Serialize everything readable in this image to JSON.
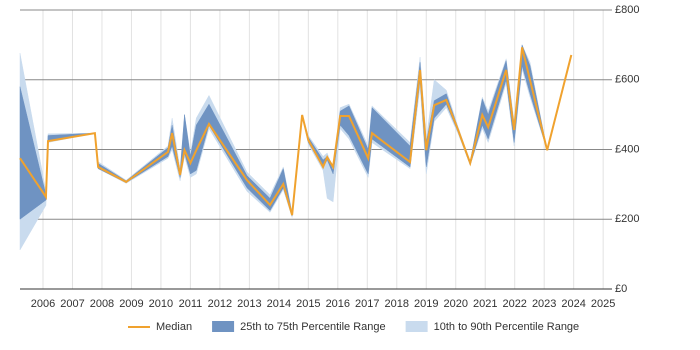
{
  "chart_data": {
    "type": "range-line",
    "x": [
      2005.22,
      2006.1,
      2006.17,
      2007.76,
      2007.87,
      2008.82,
      2010.24,
      2010.38,
      2010.65,
      2010.8,
      2011.0,
      2011.2,
      2011.63,
      2012.92,
      2013.7,
      2014.15,
      2014.45,
      2014.79,
      2015.0,
      2015.5,
      2015.64,
      2015.84,
      2016.08,
      2016.38,
      2017.03,
      2017.16,
      2018.45,
      2018.79,
      2019.0,
      2019.27,
      2019.68,
      2020.08,
      2020.49,
      2020.9,
      2021.1,
      2021.71,
      2021.98,
      2022.25,
      2022.52,
      2023.1,
      2023.92
    ],
    "series": [
      {
        "name": "10th to 90th Percentile Range",
        "color": "#c9dbee",
        "low": [
          112,
          240,
          420,
          447,
          345,
          303,
          375,
          400,
          310,
          380,
          320,
          330,
          460,
          280,
          220,
          285,
          205,
          499,
          415,
          340,
          260,
          250,
          460,
          430,
          320,
          420,
          345,
          580,
          330,
          480,
          520,
          445,
          355,
          460,
          420,
          590,
          410,
          630,
          550,
          398,
          671
        ],
        "high": [
          676,
          280,
          445,
          447,
          365,
          312,
          410,
          490,
          345,
          500,
          390,
          490,
          555,
          335,
          270,
          350,
          220,
          499,
          440,
          380,
          390,
          345,
          520,
          530,
          410,
          525,
          420,
          665,
          430,
          600,
          570,
          465,
          365,
          550,
          510,
          660,
          480,
          700,
          650,
          398,
          671
        ]
      },
      {
        "name": "25th to 75th Percentile Range",
        "color": "#6f93c2",
        "low": [
          200,
          255,
          425,
          447,
          345,
          305,
          380,
          410,
          320,
          390,
          330,
          340,
          470,
          290,
          225,
          290,
          210,
          499,
          420,
          350,
          370,
          330,
          470,
          440,
          330,
          430,
          350,
          600,
          350,
          490,
          530,
          450,
          355,
          470,
          430,
          600,
          420,
          640,
          560,
          398,
          671
        ],
        "high": [
          580,
          270,
          440,
          447,
          360,
          310,
          405,
          470,
          335,
          500,
          380,
          470,
          530,
          325,
          260,
          345,
          215,
          499,
          435,
          370,
          380,
          340,
          510,
          525,
          400,
          520,
          410,
          650,
          420,
          540,
          560,
          460,
          365,
          545,
          500,
          655,
          470,
          700,
          640,
          398,
          671
        ]
      },
      {
        "name": "Median",
        "color": "#f0a22e",
        "values": [
          375,
          264,
          424,
          447,
          350,
          307,
          393,
          447,
          327,
          398,
          361,
          398,
          473,
          312,
          241,
          301,
          212,
          499,
          427,
          350,
          378,
          350,
          496,
          496,
          375,
          447,
          364,
          628,
          398,
          527,
          542,
          456,
          361,
          499,
          464,
          628,
          456,
          693,
          599,
          398,
          671
        ]
      }
    ],
    "xlim": [
      2005.22,
      2025.3
    ],
    "xticks": [
      2006,
      2007,
      2008,
      2009,
      2010,
      2011,
      2012,
      2013,
      2014,
      2015,
      2016,
      2017,
      2018,
      2019,
      2020,
      2021,
      2022,
      2023,
      2024,
      2025
    ],
    "ylim": [
      0,
      800
    ],
    "yticks": [
      {
        "value": 0,
        "label": "£0"
      },
      {
        "value": 200,
        "label": "£200"
      },
      {
        "value": 400,
        "label": "£400"
      },
      {
        "value": 600,
        "label": "£600"
      },
      {
        "value": 800,
        "label": "£800"
      }
    ],
    "grid": true
  }
}
